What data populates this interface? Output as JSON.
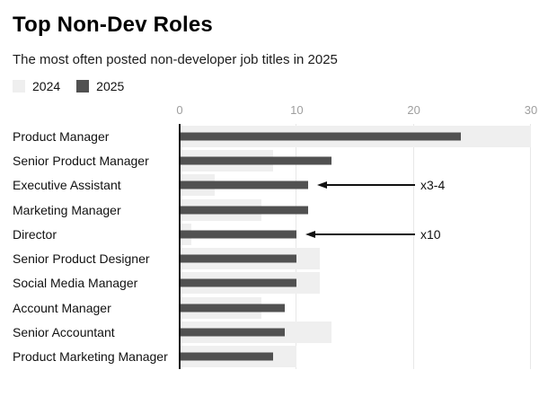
{
  "header": {
    "title": "Top Non-Dev Roles",
    "subtitle": "The most often posted non-developer job titles in 2025"
  },
  "legend": {
    "items": [
      {
        "label": "2024",
        "color": "#efefef"
      },
      {
        "label": "2025",
        "color": "#515151"
      }
    ]
  },
  "chart_data": {
    "type": "bar",
    "orientation": "horizontal",
    "title": "Top Non-Dev Roles",
    "subtitle": "The most often posted non-developer job titles in 2025",
    "categories": [
      "Product Manager",
      "Senior Product Manager",
      "Executive Assistant",
      "Marketing Manager",
      "Director",
      "Senior Product Designer",
      "Social Media Manager",
      "Account Manager",
      "Senior Accountant",
      "Product Marketing Manager"
    ],
    "series": [
      {
        "name": "2024",
        "color": "#efefef",
        "values": [
          30,
          8,
          3,
          7,
          1,
          12,
          12,
          7,
          13,
          10
        ]
      },
      {
        "name": "2025",
        "color": "#515151",
        "values": [
          24,
          13,
          11,
          11,
          10,
          10,
          10,
          9,
          9,
          8
        ]
      }
    ],
    "xlim": [
      0,
      30
    ],
    "x_ticks": [
      0,
      10,
      20,
      30
    ],
    "grid": true,
    "legend_position": "top-left",
    "annotations": [
      {
        "category": "Executive Assistant",
        "text": "x3-4"
      },
      {
        "category": "Director",
        "text": "x10"
      }
    ]
  }
}
